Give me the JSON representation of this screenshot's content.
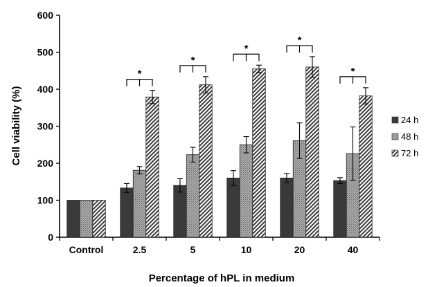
{
  "chart_data": {
    "type": "bar",
    "title": "",
    "xlabel": "Percentage of hPL in medium",
    "ylabel": "Cell viability (%)",
    "ylim": [
      0,
      600
    ],
    "yticks": [
      0,
      100,
      200,
      300,
      400,
      500,
      600
    ],
    "categories": [
      "Control",
      "2.5",
      "5",
      "10",
      "20",
      "40"
    ],
    "grid": false,
    "legend_position": "right",
    "series": [
      {
        "name": "24 h",
        "color": "#3a3a3a",
        "pattern": "solid",
        "values": [
          100,
          133,
          140,
          160,
          160,
          153
        ],
        "errors": [
          0,
          12,
          18,
          20,
          12,
          8
        ]
      },
      {
        "name": "48 h",
        "color": "#9a9a9a",
        "pattern": "dots",
        "values": [
          100,
          181,
          223,
          250,
          261,
          226
        ],
        "errors": [
          0,
          10,
          20,
          22,
          48,
          72
        ]
      },
      {
        "name": "72 h",
        "color": "#4a4a4a",
        "pattern": "stripes",
        "values": [
          100,
          379,
          412,
          455,
          460,
          382
        ],
        "errors": [
          0,
          18,
          22,
          10,
          28,
          22
        ]
      }
    ],
    "annotations": [
      {
        "category": "2.5",
        "label": "*"
      },
      {
        "category": "5",
        "label": "*"
      },
      {
        "category": "10",
        "label": "*"
      },
      {
        "category": "20",
        "label": "*"
      },
      {
        "category": "40",
        "label": "*"
      }
    ]
  }
}
